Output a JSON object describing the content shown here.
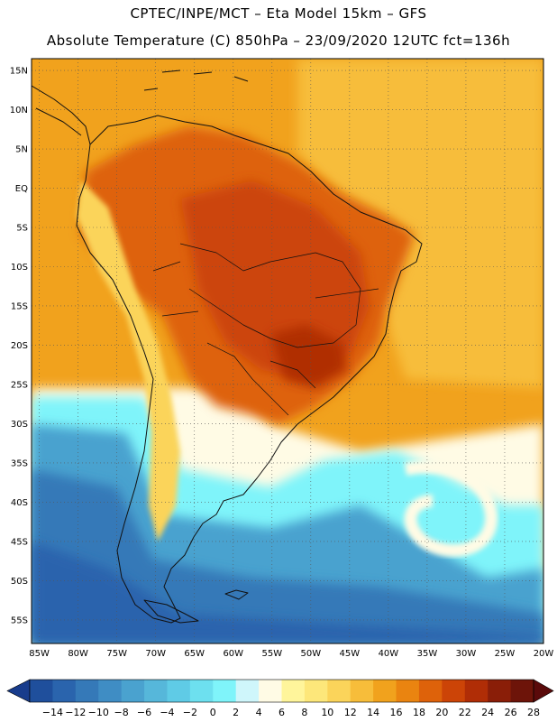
{
  "header": {
    "line1": "CPTEC/INPE/MCT –  Eta Model 15km – GFS",
    "line2": "Absolute Temperature (C) 850hPa – 23/09/2020 12UTC fct=136h"
  },
  "map": {
    "lon_range": [
      -86,
      -20
    ],
    "lat_range": [
      -58,
      16.5
    ],
    "lon_ticks": [
      {
        "value": -85,
        "label": "85W"
      },
      {
        "value": -80,
        "label": "80W"
      },
      {
        "value": -75,
        "label": "75W"
      },
      {
        "value": -70,
        "label": "70W"
      },
      {
        "value": -65,
        "label": "65W"
      },
      {
        "value": -60,
        "label": "60W"
      },
      {
        "value": -55,
        "label": "55W"
      },
      {
        "value": -50,
        "label": "50W"
      },
      {
        "value": -45,
        "label": "45W"
      },
      {
        "value": -40,
        "label": "40W"
      },
      {
        "value": -35,
        "label": "35W"
      },
      {
        "value": -30,
        "label": "30W"
      },
      {
        "value": -25,
        "label": "25W"
      },
      {
        "value": -20,
        "label": "20W"
      }
    ],
    "lat_ticks": [
      {
        "value": 15,
        "label": "15N"
      },
      {
        "value": 10,
        "label": "10N"
      },
      {
        "value": 5,
        "label": "5N"
      },
      {
        "value": 0,
        "label": "EQ"
      },
      {
        "value": -5,
        "label": "5S"
      },
      {
        "value": -10,
        "label": "10S"
      },
      {
        "value": -15,
        "label": "15S"
      },
      {
        "value": -20,
        "label": "20S"
      },
      {
        "value": -25,
        "label": "25S"
      },
      {
        "value": -30,
        "label": "30S"
      },
      {
        "value": -35,
        "label": "35S"
      },
      {
        "value": -40,
        "label": "40S"
      },
      {
        "value": -45,
        "label": "45S"
      },
      {
        "value": -50,
        "label": "50S"
      },
      {
        "value": -55,
        "label": "55S"
      }
    ]
  },
  "colorbar": {
    "labels": [
      "-14",
      "-12",
      "-10",
      "-8",
      "-6",
      "-4",
      "-2",
      "0",
      "2",
      "4",
      "6",
      "8",
      "10",
      "12",
      "14",
      "16",
      "18",
      "20",
      "22",
      "24",
      "26",
      "28"
    ],
    "colors": [
      "#183c8c",
      "#1f4f9c",
      "#2a64ad",
      "#3579b8",
      "#3f8dc4",
      "#4aa2cf",
      "#56b7da",
      "#5fcbe6",
      "#6de0ef",
      "#7ff4fa",
      "#cff6fb",
      "#fffbe5",
      "#fff59b",
      "#fde77a",
      "#fbd45a",
      "#f7bd3a",
      "#f1a21d",
      "#ea8410",
      "#de620a",
      "#cc4407",
      "#b02d06",
      "#8a1e08",
      "#6d1409",
      "#5a0a0a"
    ]
  },
  "field": {
    "zones": [
      {
        "name": "warm-ocean-north",
        "color": "#f1a21d"
      },
      {
        "name": "warm-ocean-light",
        "color": "#f7bd3a"
      },
      {
        "name": "continent-interior",
        "color": "#de620a"
      },
      {
        "name": "continent-hot-core",
        "color": "#cc4407"
      },
      {
        "name": "hot-spot-se-brazil",
        "color": "#b02d06"
      },
      {
        "name": "andes-cold",
        "color": "#fbd45a"
      },
      {
        "name": "mid-lat-cream",
        "color": "#fffbe5"
      },
      {
        "name": "mid-lat-cyan",
        "color": "#7ff4fa"
      },
      {
        "name": "southern-blue",
        "color": "#4aa2cf"
      },
      {
        "name": "polar-deep-blue",
        "color": "#2a64ad"
      }
    ]
  }
}
